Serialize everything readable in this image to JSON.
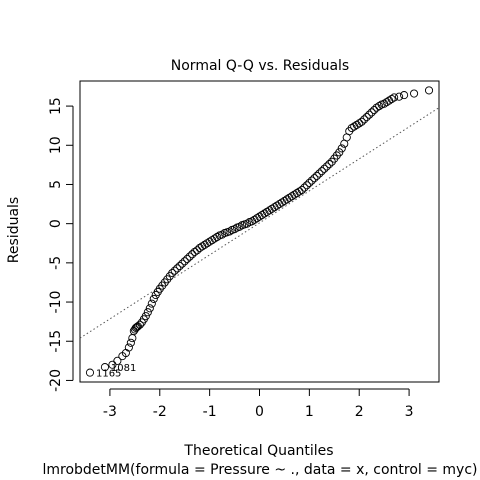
{
  "chart_data": {
    "type": "scatter",
    "title": "Normal Q-Q vs. Residuals",
    "xlabel": "Theoretical Quantiles",
    "ylabel": "Residuals",
    "subtitle": "lmrobdetMM(formula = Pressure ~ ., data = x, control = myc)",
    "xlim": [
      -3.6,
      3.6
    ],
    "ylim": [
      -20.2,
      18.2
    ],
    "x_ticks": [
      -3,
      -2,
      -1,
      0,
      1,
      2,
      3
    ],
    "x_tick_labels": [
      "-3",
      "-2",
      "-1",
      "0",
      "1",
      "2",
      "3"
    ],
    "y_ticks": [
      -20,
      -15,
      -10,
      -5,
      0,
      5,
      10,
      15
    ],
    "y_tick_labels": [
      "-20",
      "-15",
      "-10",
      "-5",
      "0",
      "5",
      "10",
      "15"
    ],
    "grid": false,
    "legend": "none",
    "reference_line": {
      "style": "dotted",
      "points": [
        [
          -3.6,
          -14.6
        ],
        [
          3.6,
          14.8
        ]
      ]
    },
    "series": [
      {
        "marker": "open-circle",
        "x": [
          -3.4,
          -3.1,
          -2.95,
          -2.85,
          -2.75,
          -2.68,
          -2.62,
          -2.58,
          -2.55,
          -2.52,
          -2.5,
          -2.48,
          -2.46,
          -2.44,
          -2.4,
          -2.36,
          -2.32,
          -2.28,
          -2.24,
          -2.2,
          -2.16,
          -2.12,
          -2.08,
          -2.04,
          -2.0,
          -1.95,
          -1.9,
          -1.85,
          -1.8,
          -1.75,
          -1.7,
          -1.65,
          -1.6,
          -1.55,
          -1.5,
          -1.45,
          -1.4,
          -1.35,
          -1.3,
          -1.25,
          -1.2,
          -1.15,
          -1.1,
          -1.05,
          -1.0,
          -0.95,
          -0.9,
          -0.85,
          -0.8,
          -0.75,
          -0.7,
          -0.65,
          -0.6,
          -0.55,
          -0.5,
          -0.45,
          -0.4,
          -0.35,
          -0.3,
          -0.25,
          -0.2,
          -0.15,
          -0.1,
          -0.05,
          0.0,
          0.05,
          0.1,
          0.15,
          0.2,
          0.25,
          0.3,
          0.35,
          0.4,
          0.45,
          0.5,
          0.55,
          0.6,
          0.65,
          0.7,
          0.75,
          0.8,
          0.85,
          0.9,
          0.95,
          1.0,
          1.05,
          1.1,
          1.15,
          1.2,
          1.25,
          1.3,
          1.35,
          1.4,
          1.45,
          1.5,
          1.55,
          1.6,
          1.65,
          1.7,
          1.75,
          1.8,
          1.85,
          1.9,
          1.95,
          2.0,
          2.05,
          2.1,
          2.15,
          2.2,
          2.25,
          2.3,
          2.35,
          2.4,
          2.45,
          2.5,
          2.55,
          2.6,
          2.65,
          2.7,
          2.8,
          2.9,
          3.1,
          3.4
        ],
        "y": [
          -19.0,
          -18.3,
          -18.0,
          -17.5,
          -16.9,
          -16.5,
          -15.8,
          -15.2,
          -14.6,
          -13.7,
          -13.5,
          -13.3,
          -13.2,
          -13.1,
          -12.9,
          -12.6,
          -12.2,
          -11.8,
          -11.3,
          -10.8,
          -10.2,
          -9.6,
          -9.1,
          -8.7,
          -8.3,
          -7.9,
          -7.5,
          -7.1,
          -6.7,
          -6.3,
          -6.0,
          -5.7,
          -5.4,
          -5.1,
          -4.8,
          -4.5,
          -4.2,
          -3.9,
          -3.6,
          -3.4,
          -3.1,
          -2.9,
          -2.7,
          -2.5,
          -2.3,
          -2.1,
          -1.9,
          -1.7,
          -1.5,
          -1.4,
          -1.2,
          -1.1,
          -1.0,
          -0.8,
          -0.7,
          -0.5,
          -0.4,
          -0.2,
          -0.1,
          0.0,
          0.2,
          0.3,
          0.5,
          0.7,
          0.9,
          1.1,
          1.3,
          1.5,
          1.7,
          1.9,
          2.1,
          2.3,
          2.5,
          2.7,
          2.9,
          3.1,
          3.3,
          3.5,
          3.7,
          3.9,
          4.1,
          4.3,
          4.6,
          4.9,
          5.2,
          5.5,
          5.8,
          6.1,
          6.4,
          6.7,
          7.0,
          7.3,
          7.6,
          7.9,
          8.3,
          8.7,
          9.1,
          9.6,
          10.2,
          11.0,
          11.8,
          12.2,
          12.4,
          12.6,
          12.8,
          13.0,
          13.3,
          13.6,
          13.9,
          14.2,
          14.5,
          14.8,
          15.0,
          15.2,
          15.3,
          15.5,
          15.7,
          15.9,
          16.1,
          16.2,
          16.4,
          16.6,
          17.0
        ],
        "labels": [
          {
            "x": -3.4,
            "y": -19.0,
            "text": "1165"
          },
          {
            "x": -3.1,
            "y": -18.3,
            "text": "1081"
          }
        ]
      }
    ]
  }
}
